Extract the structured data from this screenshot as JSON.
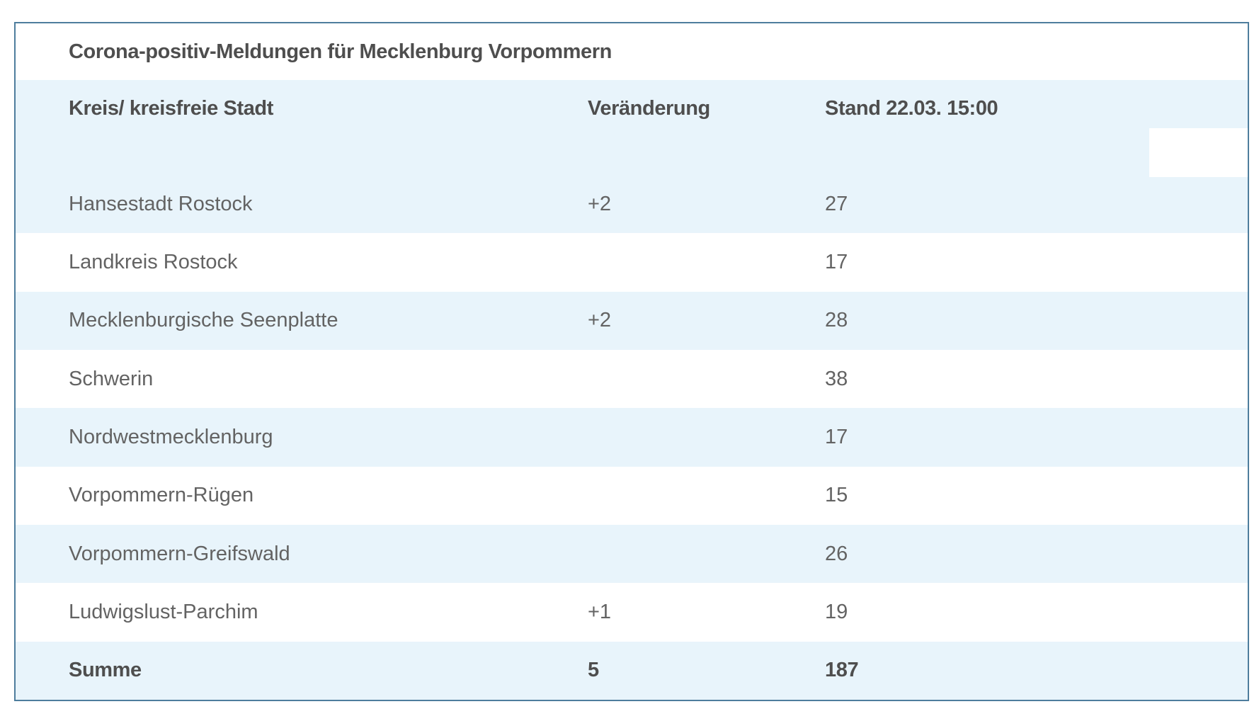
{
  "chart_data": {
    "type": "table",
    "title": "Corona-positiv-Meldungen für Mecklenburg Vorpommern",
    "columns": [
      "Kreis/ kreisfreie Stadt",
      "Veränderung",
      "Stand 22.03. 15:00"
    ],
    "rows": [
      [
        "Hansestadt Rostock",
        "+2",
        27
      ],
      [
        "Landkreis Rostock",
        "",
        17
      ],
      [
        "Mecklenburgische Seenplatte",
        "+2",
        28
      ],
      [
        "Schwerin",
        "",
        38
      ],
      [
        "Nordwestmecklenburg",
        "",
        17
      ],
      [
        "Vorpommern-Rügen",
        "",
        15
      ],
      [
        "Vorpommern-Greifswald",
        "",
        26
      ],
      [
        "Ludwigslust-Parchim",
        "+1",
        19
      ],
      [
        "Summe",
        "5",
        187
      ]
    ],
    "layout": {
      "striped_rows": true,
      "highlighted_row_indices": [
        0,
        2,
        4,
        6,
        8
      ],
      "total_row_index": 8,
      "grid_lines": "none",
      "column_alignment": [
        "left",
        "left",
        "left"
      ]
    }
  },
  "colors": {
    "row_highlight": "#e8f4fb",
    "table_border": "#4e7d9d",
    "heading_text": "#4e4e4e",
    "body_text": "#636363",
    "background": "#ffffff"
  }
}
